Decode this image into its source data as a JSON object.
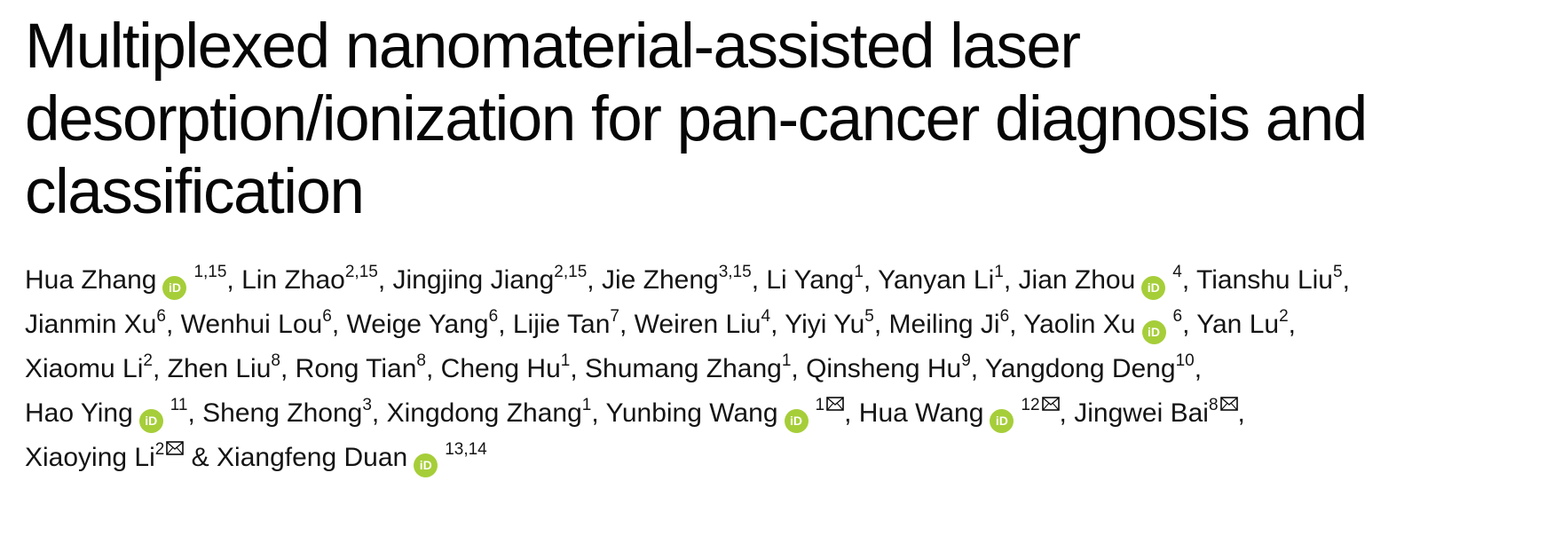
{
  "title": {
    "lines": [
      "Multiplexed nanomaterial-assisted laser",
      "desorption/ionization for pan-cancer diagnosis and",
      "classification"
    ]
  },
  "colors": {
    "orcid_green": "#A6CE39",
    "text": "#0a0a0a",
    "background": "#ffffff"
  },
  "icons": {
    "orcid": {
      "name": "orcid-icon",
      "label": "iD",
      "color": "#A6CE39"
    },
    "email": {
      "name": "email-icon",
      "glyph": "envelope"
    }
  },
  "authors": {
    "lines": [
      [
        {
          "name": "Hua Zhang",
          "orcid": true,
          "sup": "1,15",
          "sep": ", "
        },
        {
          "name": "Lin Zhao",
          "sup": "2,15",
          "sep": ", "
        },
        {
          "name": "Jingjing Jiang",
          "sup": "2,15",
          "sep": ", "
        },
        {
          "name": "Jie Zheng",
          "sup": "3,15",
          "sep": ", "
        },
        {
          "name": "Li Yang",
          "sup": "1",
          "sep": ", "
        },
        {
          "name": "Yanyan Li",
          "sup": "1",
          "sep": ", "
        },
        {
          "name": "Jian Zhou",
          "orcid": true,
          "sup": "4",
          "sep": ", "
        },
        {
          "name": "Tianshu Liu",
          "sup": "5",
          "sep": ","
        }
      ],
      [
        {
          "name": "Jianmin Xu",
          "sup": "6",
          "sep": ", "
        },
        {
          "name": "Wenhui Lou",
          "sup": "6",
          "sep": ", "
        },
        {
          "name": "Weige Yang",
          "sup": "6",
          "sep": ", "
        },
        {
          "name": "Lijie Tan",
          "sup": "7",
          "sep": ", "
        },
        {
          "name": "Weiren Liu",
          "sup": "4",
          "sep": ", "
        },
        {
          "name": "Yiyi Yu",
          "sup": "5",
          "sep": ", "
        },
        {
          "name": "Meiling Ji",
          "sup": "6",
          "sep": ", "
        },
        {
          "name": "Yaolin Xu",
          "orcid": true,
          "sup": "6",
          "sep": ", "
        },
        {
          "name": "Yan Lu",
          "sup": "2",
          "sep": ","
        }
      ],
      [
        {
          "name": "Xiaomu Li",
          "sup": "2",
          "sep": ", "
        },
        {
          "name": "Zhen Liu",
          "sup": "8",
          "sep": ", "
        },
        {
          "name": "Rong Tian",
          "sup": "8",
          "sep": ", "
        },
        {
          "name": "Cheng Hu",
          "sup": "1",
          "sep": ", "
        },
        {
          "name": "Shumang Zhang",
          "sup": "1",
          "sep": ", "
        },
        {
          "name": "Qinsheng Hu",
          "sup": "9",
          "sep": ", "
        },
        {
          "name": "Yangdong Deng",
          "sup": "10",
          "sep": ","
        }
      ],
      [
        {
          "name": "Hao Ying",
          "orcid": true,
          "sup": "11",
          "sep": ", "
        },
        {
          "name": "Sheng Zhong",
          "sup": "3",
          "sep": ", "
        },
        {
          "name": "Xingdong Zhang",
          "sup": "1",
          "sep": ", "
        },
        {
          "name": "Yunbing Wang",
          "orcid": true,
          "sup": "1",
          "email": true,
          "sep": ", "
        },
        {
          "name": "Hua Wang",
          "orcid": true,
          "sup": "12",
          "email": true,
          "sep": ", "
        },
        {
          "name": "Jingwei Bai",
          "sup": "8",
          "email": true,
          "sep": ","
        }
      ],
      [
        {
          "name": "Xiaoying Li",
          "sup": "2",
          "email": true,
          "sep": " & "
        },
        {
          "name": "Xiangfeng Duan",
          "orcid": true,
          "sup": "13,14",
          "sep": ""
        }
      ]
    ]
  }
}
